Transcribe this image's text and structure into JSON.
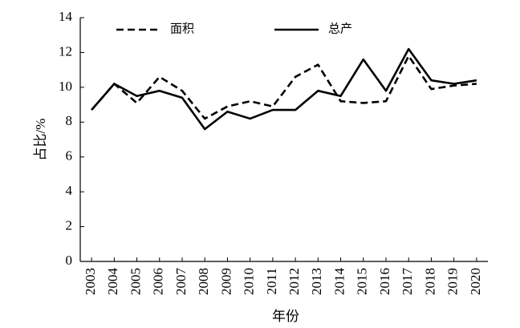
{
  "chart_data": {
    "type": "line",
    "y_label": "占比/%",
    "x_label": "年份",
    "categories": [
      "2003",
      "2004",
      "2005",
      "2006",
      "2007",
      "2008",
      "2009",
      "2010",
      "2011",
      "2012",
      "2013",
      "2014",
      "2015",
      "2016",
      "2017",
      "2018",
      "2019",
      "2020"
    ],
    "series": [
      {
        "name": "面积",
        "color": "#000000",
        "linestyle": "dashed",
        "values": [
          8.7,
          10.2,
          9.1,
          10.6,
          9.8,
          8.2,
          8.9,
          9.2,
          8.9,
          10.6,
          11.3,
          9.2,
          9.1,
          9.2,
          11.8,
          9.9,
          10.1,
          10.2
        ]
      },
      {
        "name": "总产",
        "color": "#000000",
        "linestyle": "solid",
        "values": [
          8.7,
          10.2,
          9.5,
          9.8,
          9.4,
          7.6,
          8.6,
          8.2,
          8.7,
          8.7,
          9.8,
          9.5,
          11.6,
          9.8,
          12.2,
          10.4,
          10.2,
          10.4
        ]
      }
    ],
    "ylim": [
      0,
      14
    ],
    "yticks": [
      0,
      2,
      4,
      6,
      8,
      10,
      12,
      14
    ],
    "grid": false
  }
}
